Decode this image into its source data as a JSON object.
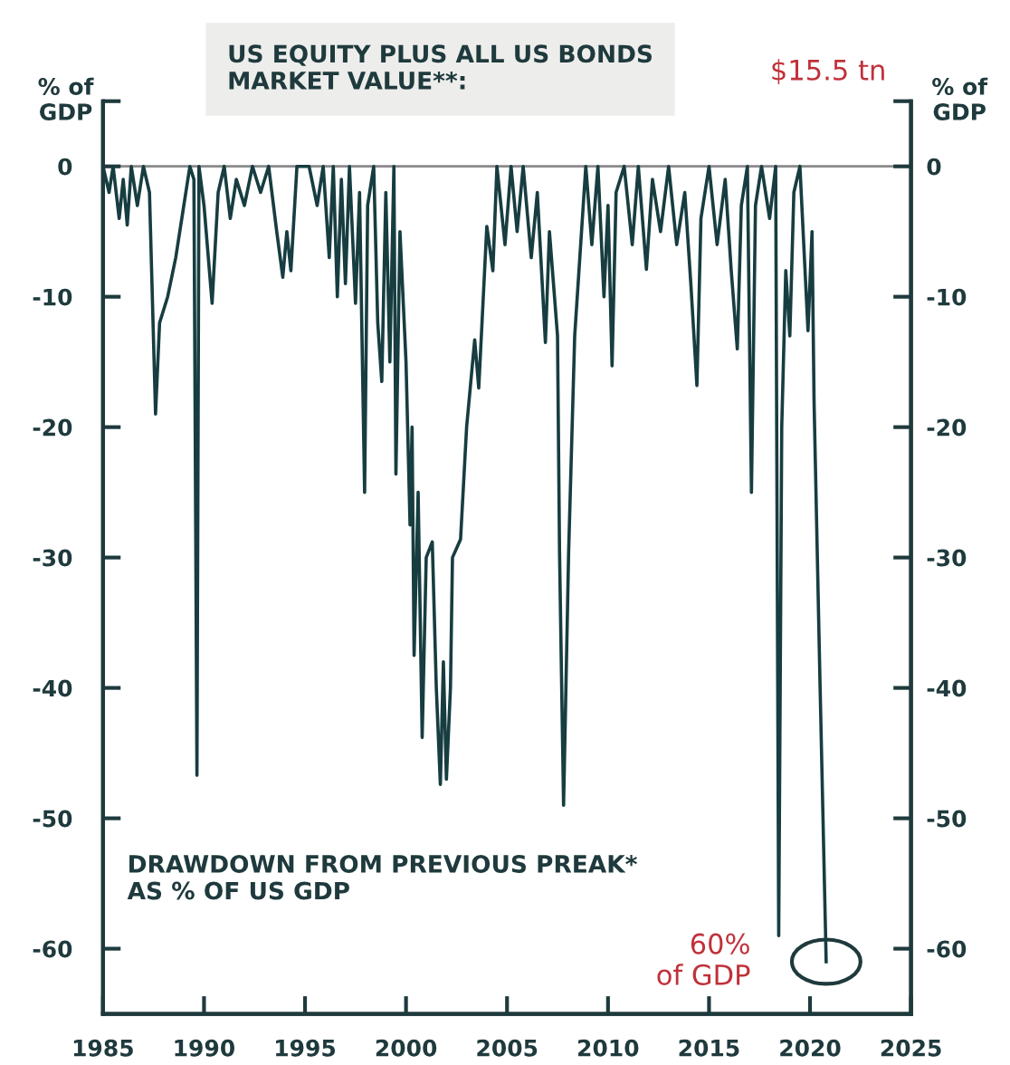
{
  "chart_data": {
    "type": "line",
    "title": "US EQUITY PLUS ALL US BONDS\nMARKET VALUE**:",
    "subtitle": "DRAWDOWN FROM PREVIOUS PREAK*\nAS % OF US GDP",
    "ylabel": "% of\nGDP",
    "y2label": "% of\nGDP",
    "annotations": [
      "$15.5 tn",
      {
        "text": "60%\nof GDP",
        "x": 2020.8,
        "y": -61
      }
    ],
    "xlim": [
      1985,
      2025
    ],
    "xticks": [
      1985,
      1990,
      1995,
      2000,
      2005,
      2010,
      2015,
      2020,
      2025
    ],
    "ylim": [
      -65,
      5
    ],
    "yticks": [
      {
        "value": 5,
        "label": null
      },
      0,
      -10,
      -20,
      -30,
      -40,
      -50,
      -60
    ],
    "y2lim": [
      -65,
      5
    ],
    "y2ticks": [
      {
        "value": 5,
        "label": null
      },
      0,
      -10,
      -20,
      -30,
      -40,
      -50,
      -60
    ],
    "ref_lines": [
      {
        "axis": "y",
        "value": 0,
        "color": "#8a8a8a"
      }
    ],
    "grid": false,
    "legend": false,
    "marker": "none",
    "line_style": "solid",
    "series": [
      {
        "color": "#173d40",
        "x": [
          1985.0,
          1985.3,
          1985.5,
          1985.8,
          1986.0,
          1986.2,
          1986.4,
          1986.7,
          1987.0,
          1987.3,
          1987.6,
          1987.8,
          1988.2,
          1988.6,
          1989.0,
          1989.3,
          1989.5,
          1989.65,
          1989.75,
          1990.0,
          1990.4,
          1990.7,
          1991.0,
          1991.3,
          1991.6,
          1992.0,
          1992.4,
          1992.8,
          1993.2,
          1993.6,
          1993.9,
          1994.1,
          1994.3,
          1994.6,
          1995.2,
          1995.6,
          1995.9,
          1996.2,
          1996.4,
          1996.6,
          1996.8,
          1997.0,
          1997.2,
          1997.5,
          1997.7,
          1997.95,
          1998.1,
          1998.4,
          1998.6,
          1998.8,
          1999.0,
          1999.2,
          1999.4,
          1999.5,
          1999.7,
          2000.0,
          2000.2,
          2000.3,
          2000.4,
          2000.6,
          2000.8,
          2001.0,
          2001.3,
          2001.5,
          2001.7,
          2001.85,
          2002.0,
          2002.2,
          2002.3,
          2002.7,
          2003.0,
          2003.4,
          2003.6,
          2004.0,
          2004.3,
          2004.5,
          2004.9,
          2005.2,
          2005.5,
          2005.8,
          2006.2,
          2006.5,
          2006.9,
          2007.1,
          2007.5,
          2007.6,
          2007.8,
          2008.05,
          2008.35,
          2008.9,
          2009.2,
          2009.5,
          2009.8,
          2010.0,
          2010.2,
          2010.4,
          2010.8,
          2011.2,
          2011.5,
          2011.9,
          2012.2,
          2012.6,
          2013.0,
          2013.4,
          2013.8,
          2014.1,
          2014.4,
          2014.6,
          2015.0,
          2015.4,
          2015.8,
          2016.1,
          2016.4,
          2016.6,
          2016.9,
          2017.1,
          2017.3,
          2017.6,
          2018.0,
          2018.3,
          2018.45,
          2018.6,
          2018.8,
          2019.0,
          2019.2,
          2019.5,
          2019.9,
          2020.1,
          2020.2,
          2020.5,
          2020.8
        ],
        "values": [
          0,
          -2,
          0,
          -4,
          -1,
          -4.5,
          0,
          -3,
          0,
          -2,
          -19,
          -12,
          -10,
          -7,
          -3,
          0,
          -1,
          -46.7,
          0,
          -3,
          -10.5,
          -2,
          0,
          -4,
          -1,
          -3,
          0,
          -2,
          0,
          -5,
          -8.5,
          -5,
          -8,
          0,
          0,
          -3,
          0,
          -7,
          0,
          -10,
          -1,
          -9,
          0,
          -10.5,
          -2,
          -25,
          -3,
          0,
          -12,
          -16.5,
          -2,
          -15,
          0,
          -23.6,
          -5,
          -15,
          -27.5,
          -20,
          -37.5,
          -25,
          -43.8,
          -30,
          -28.8,
          -40,
          -47.4,
          -38,
          -47,
          -40,
          -30,
          -28.6,
          -20,
          -13.3,
          -17,
          -4.6,
          -8,
          0,
          -6,
          0,
          -5,
          0,
          -7,
          -2,
          -13.5,
          -5,
          -13,
          -29.6,
          -49,
          -29.6,
          -13,
          0,
          -6,
          0,
          -10,
          -3,
          -15.3,
          -2,
          0,
          -6,
          0,
          -7.9,
          -1,
          -5,
          0,
          -6,
          -2,
          -9,
          -16.8,
          -4,
          0,
          -6,
          -1,
          -8,
          -14,
          -3,
          0,
          -25,
          -3,
          0,
          -4,
          0,
          -59,
          -20,
          -8,
          -13,
          -2,
          0,
          -12.6,
          -5,
          -18,
          -40,
          -61
        ]
      }
    ]
  }
}
